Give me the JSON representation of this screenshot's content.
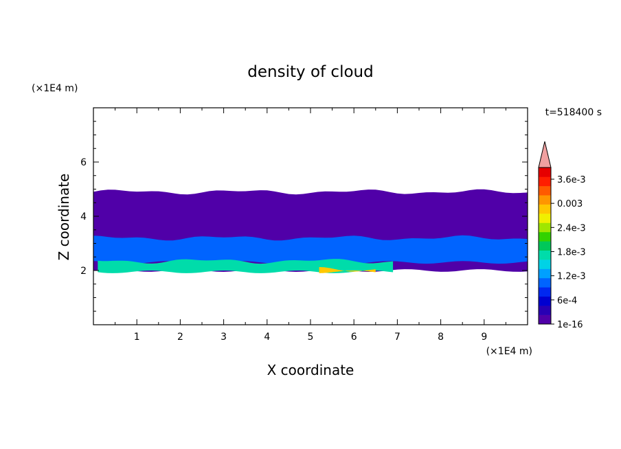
{
  "chart_data": {
    "type": "heatmap",
    "title": "density of cloud",
    "xlabel": "X coordinate",
    "ylabel": "Z coordinate",
    "x_unit": "(×1E4 m)",
    "y_unit": "(×1E4 m)",
    "time_label": "t=518400 s",
    "xlim": [
      0,
      10
    ],
    "ylim": [
      0,
      8
    ],
    "x_ticks": [
      "1",
      "2",
      "3",
      "4",
      "5",
      "6",
      "7",
      "8",
      "9"
    ],
    "y_ticks": [
      "2",
      "4",
      "6"
    ],
    "x_tick_values": [
      1,
      2,
      3,
      4,
      5,
      6,
      7,
      8,
      9
    ],
    "y_tick_values": [
      2,
      4,
      6
    ],
    "colorbar": {
      "labels": [
        "1e-16",
        "6e-4",
        "1.2e-3",
        "1.8e-3",
        "2.4e-3",
        "0.003",
        "3.6e-3"
      ],
      "colors": [
        "#5000a8",
        "#2800b4",
        "#0000d0",
        "#0028f0",
        "#0064ff",
        "#00a0ff",
        "#00d2e6",
        "#00dcaa",
        "#00c85a",
        "#32d200",
        "#a0e600",
        "#f0f000",
        "#ffc800",
        "#ff9600",
        "#ff5a00",
        "#ff1e00",
        "#e60000"
      ],
      "over_color": "#f0a0a0"
    },
    "cloud_layers": [
      {
        "level": 0,
        "x0": 0.0,
        "x1": 10.0,
        "z_bottom": 2.0,
        "z_top": 4.9
      },
      {
        "level": 4,
        "x0": 0.0,
        "x1": 10.0,
        "z_bottom": 2.3,
        "z_top": 3.2
      },
      {
        "level": 7,
        "x0": 0.1,
        "x1": 6.9,
        "z_bottom": 1.95,
        "z_top": 2.35
      },
      {
        "level": 12,
        "x0": 5.2,
        "x1": 6.5,
        "z_bottom": 1.95,
        "z_top": 2.05
      }
    ]
  }
}
